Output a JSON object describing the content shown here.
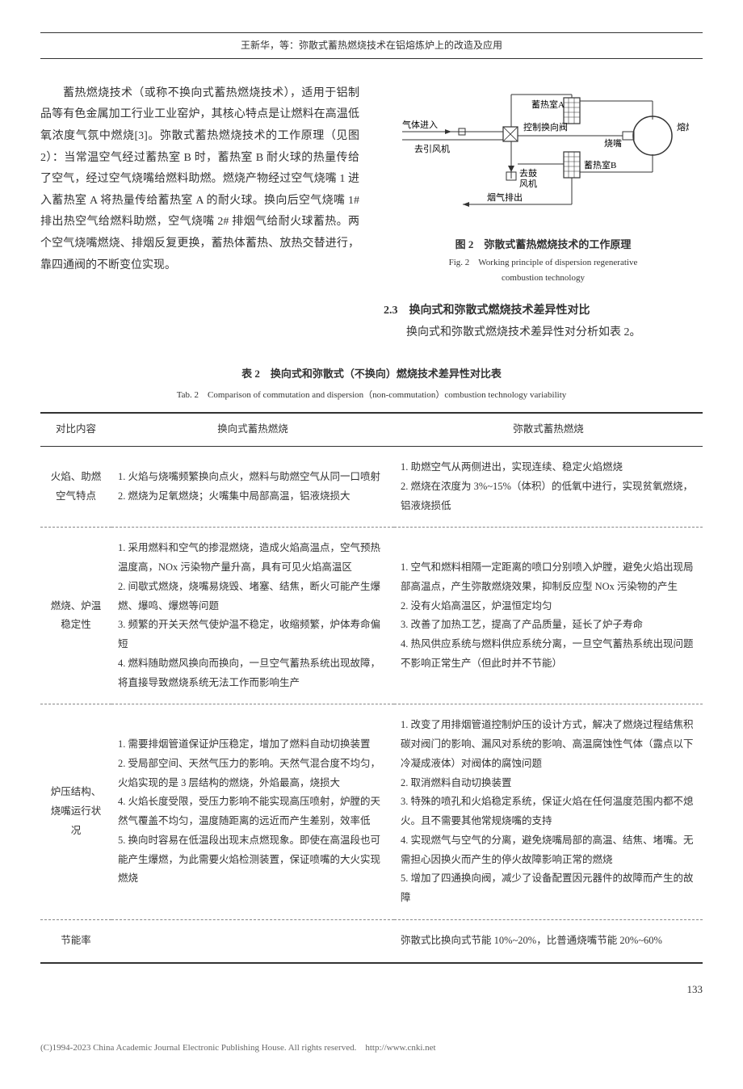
{
  "header": {
    "authors": "王新华，等：弥散式蓄热燃烧技术在铝熔炼炉上的改造及应用"
  },
  "body": {
    "main_paragraph": "蓄热燃烧技术（或称不换向式蓄热燃烧技术），适用于铝制品等有色金属加工行业工业窑炉，其核心特点是让燃料在高温低氧浓度气氛中燃烧[3]。弥散式蓄热燃烧技术的工作原理（见图 2）：当常温空气经过蓄热室 B 时，蓄热室 B 耐火球的热量传给了空气，经过空气烧嘴给燃料助燃。燃烧产物经过空气烧嘴 1 进入蓄热室 A 将热量传给蓄热室 A 的耐火球。换向后空气烧嘴 1# 排出热空气给燃料助燃，空气烧嘴 2# 排烟气给耐火球蓄热。两个空气烧嘴燃烧、排烟反复更换，蓄热体蓄热、放热交替进行，靠四通阀的不断变位实现。"
  },
  "figure2": {
    "caption_zh": "图 2　弥散式蓄热燃烧技术的工作原理",
    "caption_en_l1": "Fig. 2　Working principle of dispersion regenerative",
    "caption_en_l2": "combustion technology",
    "labels": {
      "chamber_a": "蓄热室A",
      "chamber_b": "蓄热室B",
      "furnace": "熔炼炉",
      "burner": "烧嘴",
      "valve": "控制换向阀",
      "gas_in": "气体进入",
      "induced_fan": "去引风机",
      "blower_l1": "去鼓",
      "blower_l2": "风机",
      "flue_out": "烟气排出"
    }
  },
  "section23": {
    "heading": "2.3　换向式和弥散式燃烧技术差异性对比",
    "para": "换向式和弥散式燃烧技术差异性对分析如表 2。"
  },
  "table2": {
    "caption_zh": "表 2　换向式和弥散式（不换向）燃烧技术差异性对比表",
    "caption_en": "Tab. 2　Comparison of commutation and dispersion（non-commutation）combustion technology variability",
    "headers": {
      "c0": "对比内容",
      "c1": "换向式蓄热燃烧",
      "c2": "弥散式蓄热燃烧"
    },
    "rows": {
      "r0": {
        "c0": "火焰、助燃空气特点",
        "c1": "1. 火焰与烧嘴频繁换向点火，燃料与助燃空气从同一口喷射\n2. 燃烧为足氧燃烧；火嘴集中局部高温，铝液烧损大",
        "c2": "1. 助燃空气从两侧进出，实现连续、稳定火焰燃烧\n2. 燃烧在浓度为 3%~15%（体积）的低氧中进行，实现贫氧燃烧，铝液烧损低"
      },
      "r1": {
        "c0": "燃烧、炉温稳定性",
        "c1": "1. 采用燃料和空气的掺混燃烧，造成火焰高温点，空气预热温度高，NOx 污染物产量升高，具有可见火焰高温区\n2. 间歇式燃烧，烧嘴易烧毁、堵塞、结焦，断火可能产生爆燃、爆鸣、爆燃等问题\n3. 频繁的开关天然气使炉温不稳定，收缩频繁，炉体寿命偏短\n4. 燃料随助燃风换向而换向，一旦空气蓄热系统出现故障，将直接导致燃烧系统无法工作而影响生产",
        "c2": "1. 空气和燃料相隔一定距离的喷口分别喷入炉膛，避免火焰出现局部高温点，产生弥散燃烧效果，抑制反应型 NOx 污染物的产生\n2. 没有火焰高温区，炉温恒定均匀\n3. 改善了加热工艺，提高了产品质量，延长了炉子寿命\n4. 热风供应系统与燃料供应系统分离，一旦空气蓄热系统出现问题不影响正常生产（但此时并不节能）"
      },
      "r2": {
        "c0": "炉压结构、烧嘴运行状况",
        "c1": "1. 需要排烟管道保证炉压稳定，增加了燃料自动切换装置\n2. 受局部空间、天然气压力的影响。天然气混合度不均匀，火焰实现的是 3 层结构的燃烧，外焰最高，烧损大\n4. 火焰长度受限，受压力影响不能实现高压喷射，炉膛的天然气覆盖不均匀，温度随距离的远近而产生差别，效率低\n5. 换向时容易在低温段出现末点燃现象。即使在高温段也可能产生爆燃，为此需要火焰检测装置，保证喷嘴的大火实现燃烧",
        "c2": "1. 改变了用排烟管道控制炉压的设计方式，解决了燃烧过程结焦积碳对阀门的影响、漏风对系统的影响、高温腐蚀性气体（露点以下冷凝成液体）对阀体的腐蚀问题\n2. 取消燃料自动切换装置\n3. 特殊的喷孔和火焰稳定系统，保证火焰在任何温度范围内都不熄火。且不需要其他常规烧嘴的支持\n4. 实现燃气与空气的分离，避免烧嘴局部的高温、结焦、堵嘴。无需担心因换火而产生的停火故障影响正常的燃烧\n5. 增加了四通换向阀，减少了设备配置因元器件的故障而产生的故障"
      },
      "r3": {
        "c0": "节能率",
        "c1": "",
        "c2": "弥散式比换向式节能 10%~20%，比普通烧嘴节能 20%~60%"
      }
    }
  },
  "page_num": "133",
  "footer": "(C)1994-2023 China Academic Journal Electronic Publishing House. All rights reserved.　http://www.cnki.net"
}
